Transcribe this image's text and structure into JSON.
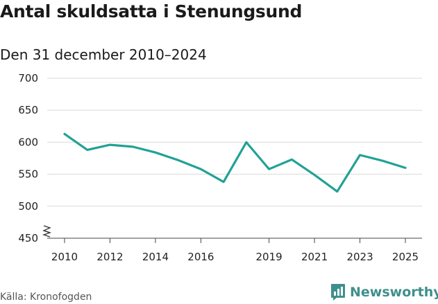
{
  "title": "Antal skuldsatta i Stenungsund",
  "subtitle": "Den 31 december 2010–2024",
  "source": "Källa: Kronofogden",
  "brand": {
    "name": "Newsworthy",
    "icon": "newsworthy-logo-icon",
    "color": "#3e8f8c"
  },
  "chart_data": {
    "type": "line",
    "title": "Antal skuldsatta i Stenungsund",
    "subtitle": "Den 31 december 2010–2024",
    "x": [
      2010,
      2011,
      2012,
      2013,
      2014,
      2015,
      2016,
      2017,
      2018,
      2019,
      2020,
      2021,
      2022,
      2023,
      2024,
      2025
    ],
    "series": [
      {
        "values": [
          613,
          588,
          596,
          593,
          584,
          572,
          558,
          538,
          600,
          558,
          573,
          549,
          523,
          580,
          571,
          560
        ],
        "color": "#21a295"
      }
    ],
    "xticks": [
      "2010",
      "2012",
      "2014",
      "2016",
      "2019",
      "2021",
      "2023",
      "2025"
    ],
    "yticks": [
      "450",
      "500",
      "550",
      "600",
      "650",
      "700"
    ],
    "ylim": [
      450,
      700
    ],
    "xlim": [
      2010,
      2025
    ],
    "axis_break": true,
    "grid": true,
    "legend": "none"
  }
}
